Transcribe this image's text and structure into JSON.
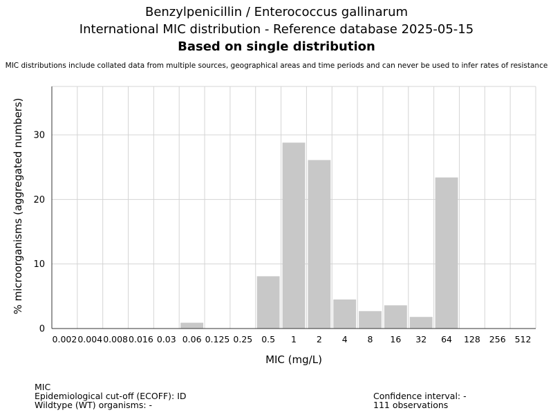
{
  "header": {
    "title_line1": "Benzylpenicillin / Enterococcus gallinarum",
    "title_line2": "International MIC distribution - Reference database 2025-05-15",
    "title_line3": "Based on single distribution",
    "disclaimer": "MIC distributions include collated data from multiple sources, geographical areas and time periods and can never be used to infer rates of resistance"
  },
  "chart_data": {
    "type": "bar",
    "categories": [
      "0.002",
      "0.004",
      "0.008",
      "0.016",
      "0.03",
      "0.06",
      "0.125",
      "0.25",
      "0.5",
      "1",
      "2",
      "4",
      "8",
      "16",
      "32",
      "64",
      "128",
      "256",
      "512"
    ],
    "values": [
      0,
      0,
      0,
      0,
      0,
      0.9,
      0,
      0,
      8.1,
      28.8,
      26.1,
      4.5,
      2.7,
      3.6,
      1.8,
      23.4,
      0,
      0,
      0
    ],
    "xlabel": "MIC (mg/L)",
    "ylabel": "% microorganisms (aggregated numbers)",
    "ylim": [
      0,
      37.5
    ],
    "yticks": [
      0,
      10,
      20,
      30
    ],
    "grid": true,
    "bar_color": "#c8c8c8",
    "grid_color": "#d4d4d4"
  },
  "footer": {
    "mic_label": "MIC",
    "ecoff": "Epidemiological cut-off (ECOFF): ID",
    "wildtype": "Wildtype (WT) organisms:  -",
    "confidence": "Confidence interval: -",
    "observations": "111 observations"
  }
}
